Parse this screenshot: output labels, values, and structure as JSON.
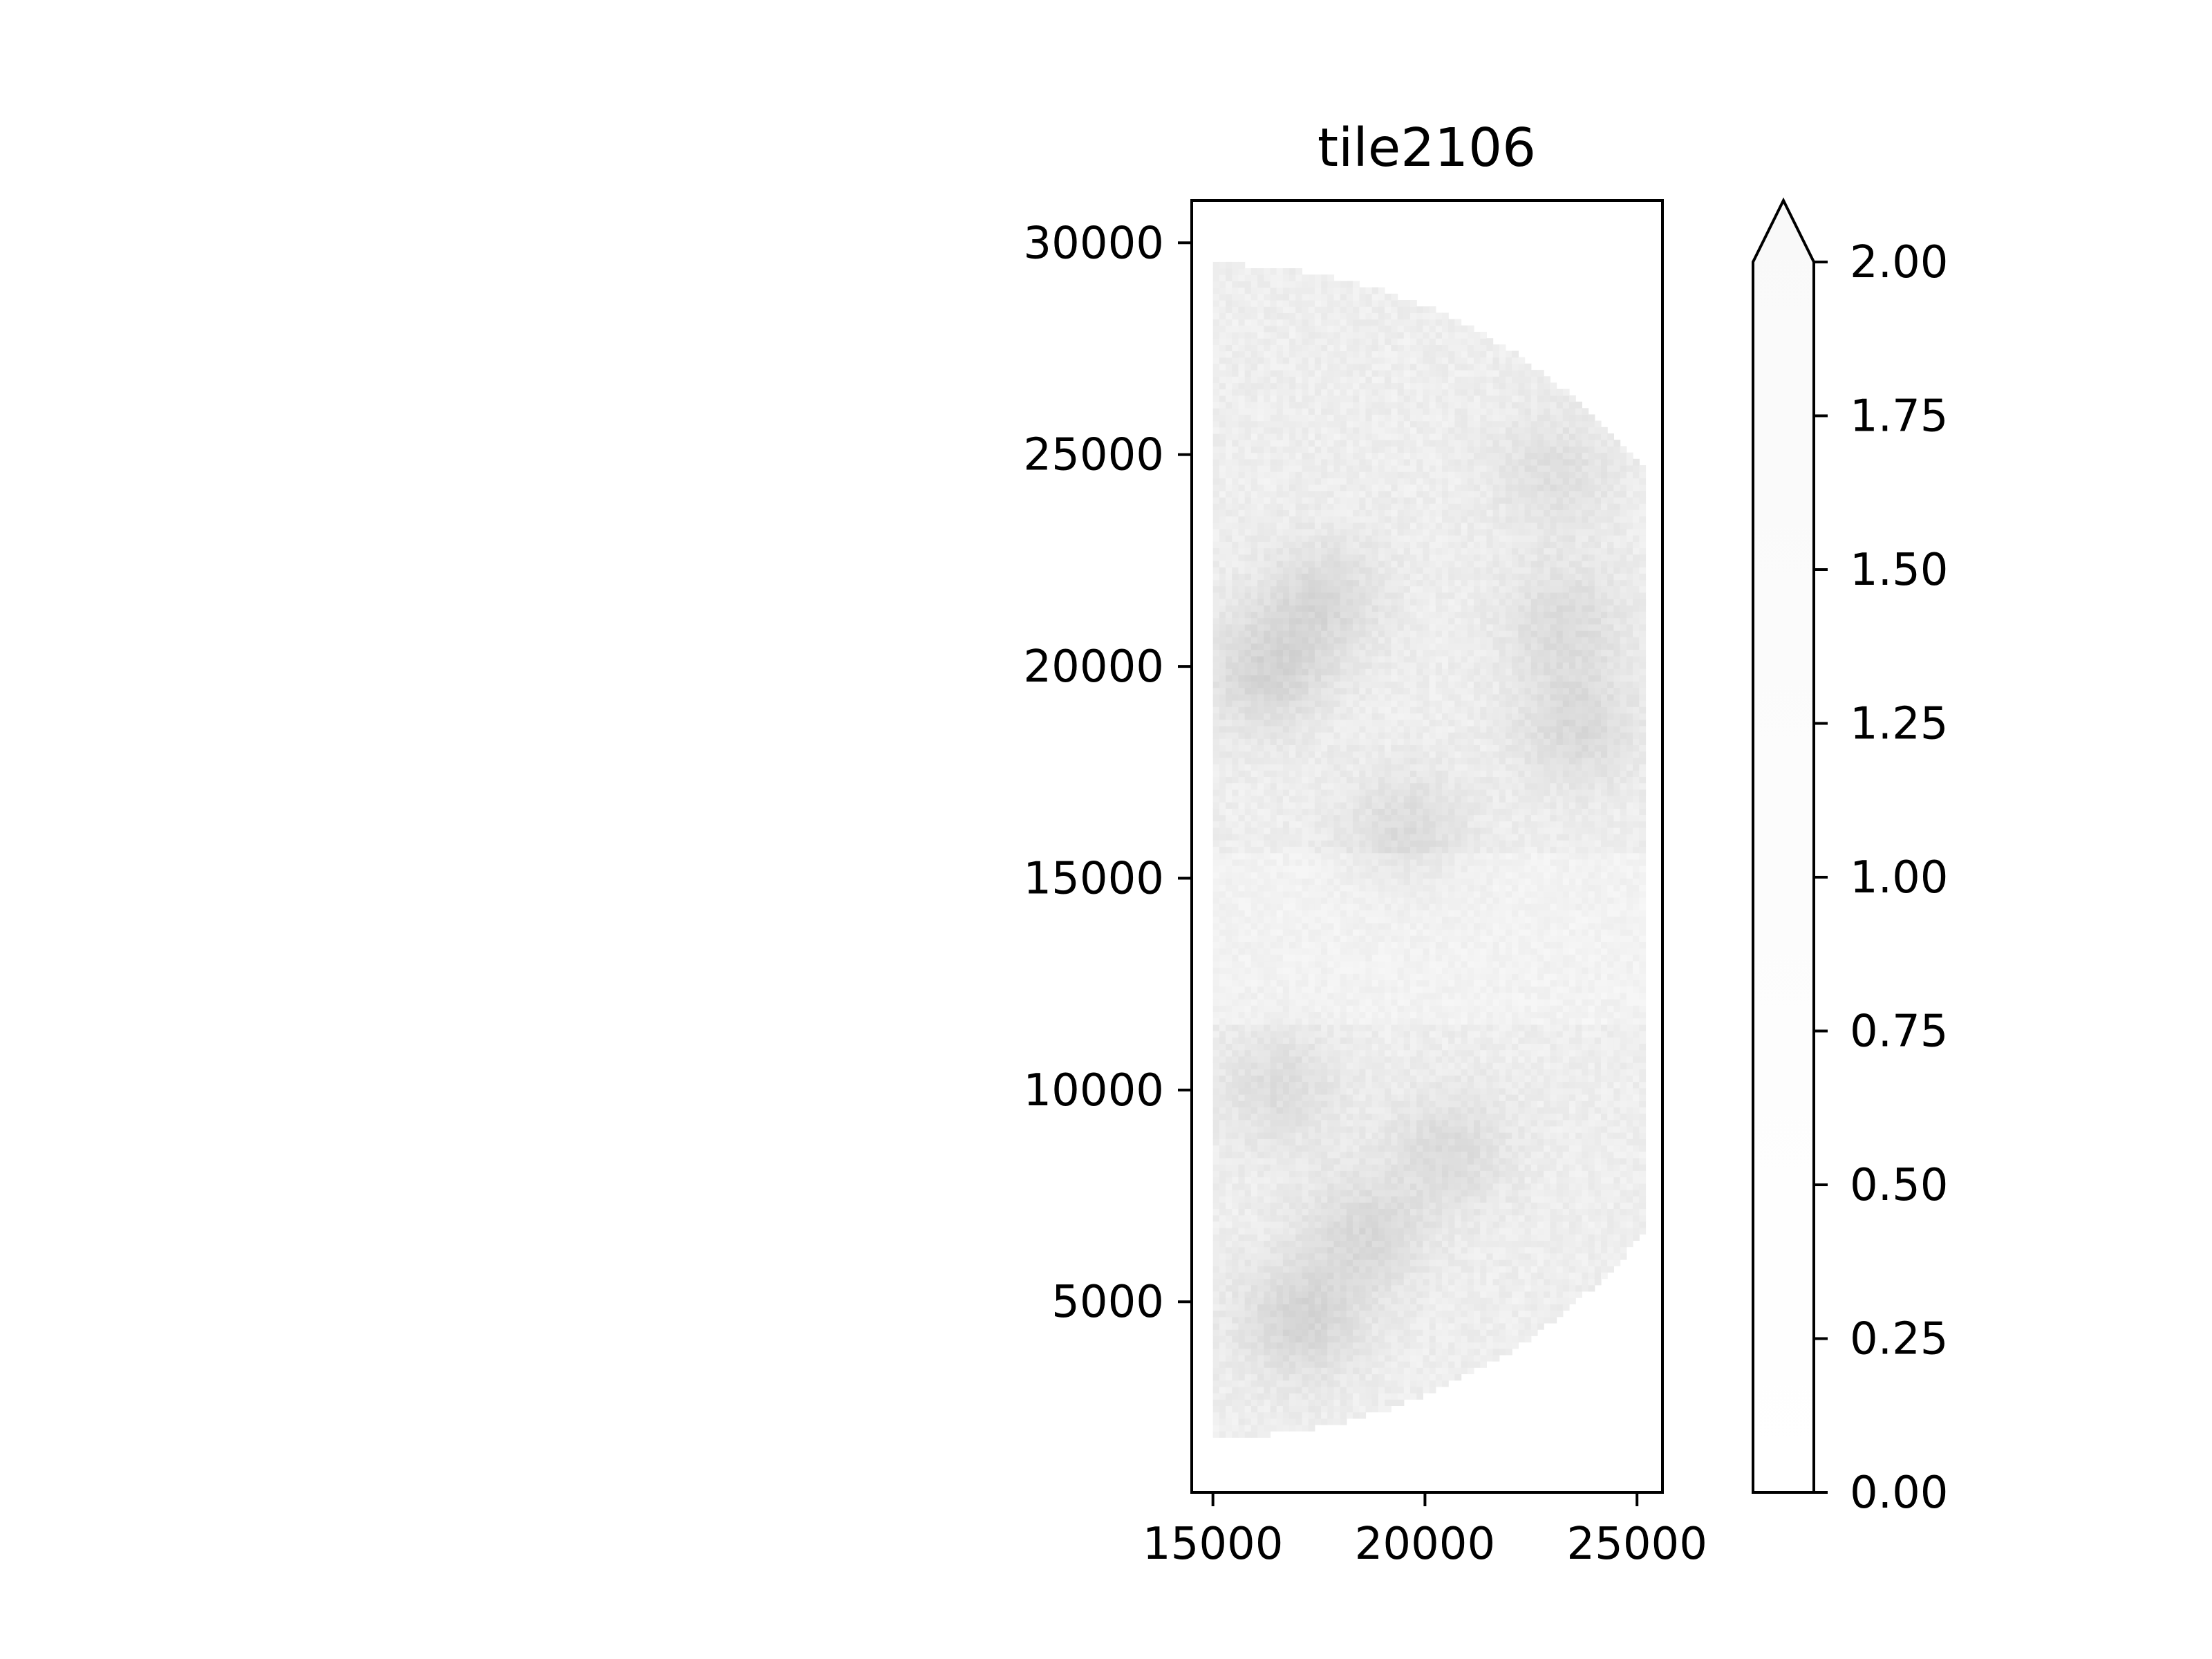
{
  "chart_data": {
    "type": "heatmap",
    "title": "tile2106",
    "xlabel": "",
    "ylabel": "",
    "xlim": [
      14500,
      25600
    ],
    "ylim": [
      500,
      31000
    ],
    "x_ticks": [
      15000,
      20000,
      25000
    ],
    "x_tick_labels": [
      "15000",
      "20000",
      "25000"
    ],
    "y_ticks": [
      5000,
      10000,
      15000,
      20000,
      25000,
      30000
    ],
    "y_tick_labels": [
      "5000",
      "10000",
      "15000",
      "20000",
      "25000",
      "30000"
    ],
    "grid": false,
    "colormap": "Greys",
    "colorbar": {
      "range": [
        0,
        2
      ],
      "extend": "max",
      "ticks": [
        0,
        0.25,
        0.5,
        0.75,
        1.0,
        1.25,
        1.5,
        1.75,
        2.0
      ],
      "tick_labels": [
        "0.00",
        "0.25",
        "0.50",
        "0.75",
        "1.00",
        "1.25",
        "1.50",
        "1.75",
        "2.00"
      ]
    },
    "data_region": {
      "description_shape": "half-disk",
      "left_edge_x": 15000,
      "right_edge_x": 25200,
      "y_min": 1800,
      "y_max": 29500
    },
    "density_range": [
      0,
      0.35
    ],
    "denser_regions": [
      {
        "x": 16200,
        "y": 19800,
        "level": 0.3
      },
      {
        "x": 17500,
        "y": 21500,
        "level": 0.25
      },
      {
        "x": 23500,
        "y": 18500,
        "level": 0.25
      },
      {
        "x": 23200,
        "y": 21000,
        "level": 0.22
      },
      {
        "x": 19500,
        "y": 16000,
        "level": 0.22
      },
      {
        "x": 17000,
        "y": 4500,
        "level": 0.3
      },
      {
        "x": 18500,
        "y": 6500,
        "level": 0.25
      },
      {
        "x": 20500,
        "y": 8500,
        "level": 0.22
      },
      {
        "x": 16500,
        "y": 10000,
        "level": 0.2
      },
      {
        "x": 23000,
        "y": 24500,
        "level": 0.18
      }
    ]
  }
}
